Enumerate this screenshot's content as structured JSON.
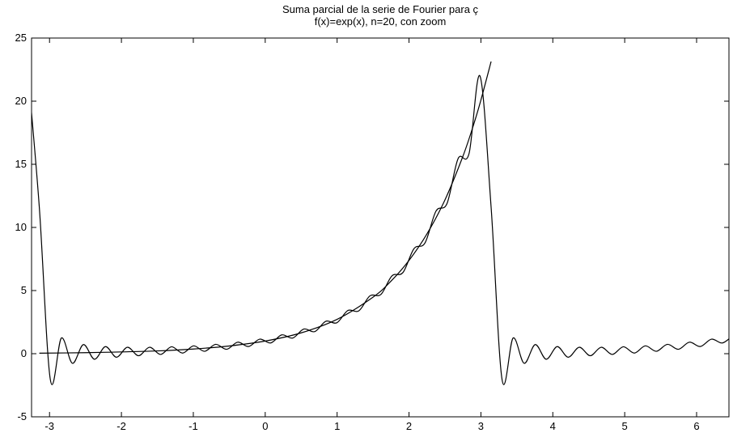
{
  "chart_data": {
    "type": "line",
    "title": "Suma parcial de la serie de Fourier para ç",
    "subtitle": "f(x)=exp(x), n=20, con zoom",
    "xlim": [
      -3.25,
      6.45
    ],
    "ylim": [
      -5,
      25
    ],
    "xticks": [
      -3,
      -2,
      -1,
      0,
      1,
      2,
      3,
      4,
      5,
      6
    ],
    "yticks": [
      -5,
      0,
      5,
      10,
      15,
      20,
      25
    ],
    "grid": false,
    "series": [
      {
        "color": "#000000",
        "x": [
          -3.142,
          -2.5,
          -2,
          -1.5,
          -1,
          -0.5,
          0,
          0.5,
          1,
          1.5,
          1.75,
          2,
          2.25,
          2.5,
          2.75,
          2.9,
          3,
          3.142
        ],
        "values": [
          0.04,
          0.08,
          0.14,
          0.22,
          0.37,
          0.61,
          1,
          1.65,
          2.72,
          4.48,
          5.75,
          7.39,
          9.49,
          12.18,
          15.64,
          18.17,
          20.09,
          23.14
        ]
      },
      {
        "color": "#000000",
        "x": [
          -3.295,
          -3.142,
          -2.988,
          -2.835,
          -2.682,
          -2.529,
          -2.375,
          -2.222,
          -2.069,
          -1.916,
          -1.762,
          -1.609,
          -1.456,
          -1.303,
          -1.149,
          -0.996,
          -0.843,
          -0.69,
          -0.536,
          -0.383,
          -0.23,
          -0.077,
          0.077,
          0.23,
          0.383,
          0.536,
          0.69,
          0.843,
          0.996,
          1.149,
          1.303,
          1.456,
          1.609,
          1.762,
          1.916,
          2.069,
          2.222,
          2.375,
          2.529,
          2.682,
          2.835,
          2.988,
          3.142,
          3.295,
          3.448,
          3.601,
          3.755,
          3.908,
          4.061,
          4.214,
          4.368,
          4.521,
          4.674,
          4.827,
          4.981,
          5.134,
          5.287,
          5.44,
          5.594,
          5.747,
          5.9,
          6.053,
          6.207,
          6.36,
          6.513
        ],
        "values": [
          21.98,
          11.59,
          -2.08,
          1.24,
          -0.76,
          0.72,
          -0.44,
          0.56,
          -0.28,
          0.51,
          -0.16,
          0.51,
          -0.06,
          0.55,
          0.05,
          0.62,
          0.19,
          0.74,
          0.35,
          0.91,
          0.57,
          1.15,
          0.85,
          1.49,
          1.24,
          1.95,
          1.75,
          2.57,
          2.45,
          3.42,
          3.4,
          4.58,
          4.69,
          6.16,
          6.43,
          8.32,
          8.77,
          11.29,
          11.9,
          15.44,
          15.85,
          21.98,
          11.59,
          -2.08,
          1.24,
          -0.76,
          0.72,
          -0.44,
          0.56,
          -0.28,
          0.51,
          -0.16,
          0.51,
          -0.06,
          0.55,
          0.05,
          0.62,
          0.19,
          0.74,
          0.35,
          0.91,
          0.57,
          1.15,
          0.85,
          1.49
        ]
      }
    ]
  }
}
